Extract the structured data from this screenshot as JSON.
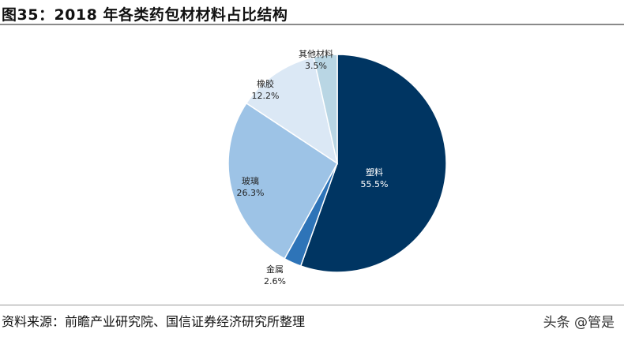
{
  "title": "图35：2018 年各类药包材材料占比结构",
  "source": "资料来源：前瞻产业研究院、国信证券经济研究所整理",
  "watermark": "头条 @管是",
  "chart_data": {
    "type": "pie",
    "start": "top",
    "direction": "clockwise",
    "slices": [
      {
        "name": "塑料",
        "value": 55.5,
        "label": "55.5%",
        "color": "#003562",
        "text_color": "#ffffff"
      },
      {
        "name": "金属",
        "value": 2.6,
        "label": "2.6%",
        "color": "#2e74b8",
        "text_color": "#222222"
      },
      {
        "name": "玻璃",
        "value": 26.3,
        "label": "26.3%",
        "color": "#9dc3e6",
        "text_color": "#222222"
      },
      {
        "name": "橡胶",
        "value": 12.2,
        "label": "12.2%",
        "color": "#dbe8f5",
        "text_color": "#222222"
      },
      {
        "name": "其他材料",
        "value": 3.5,
        "label": "3.5%",
        "color": "#b9d6e4",
        "text_color": "#222222"
      }
    ]
  }
}
